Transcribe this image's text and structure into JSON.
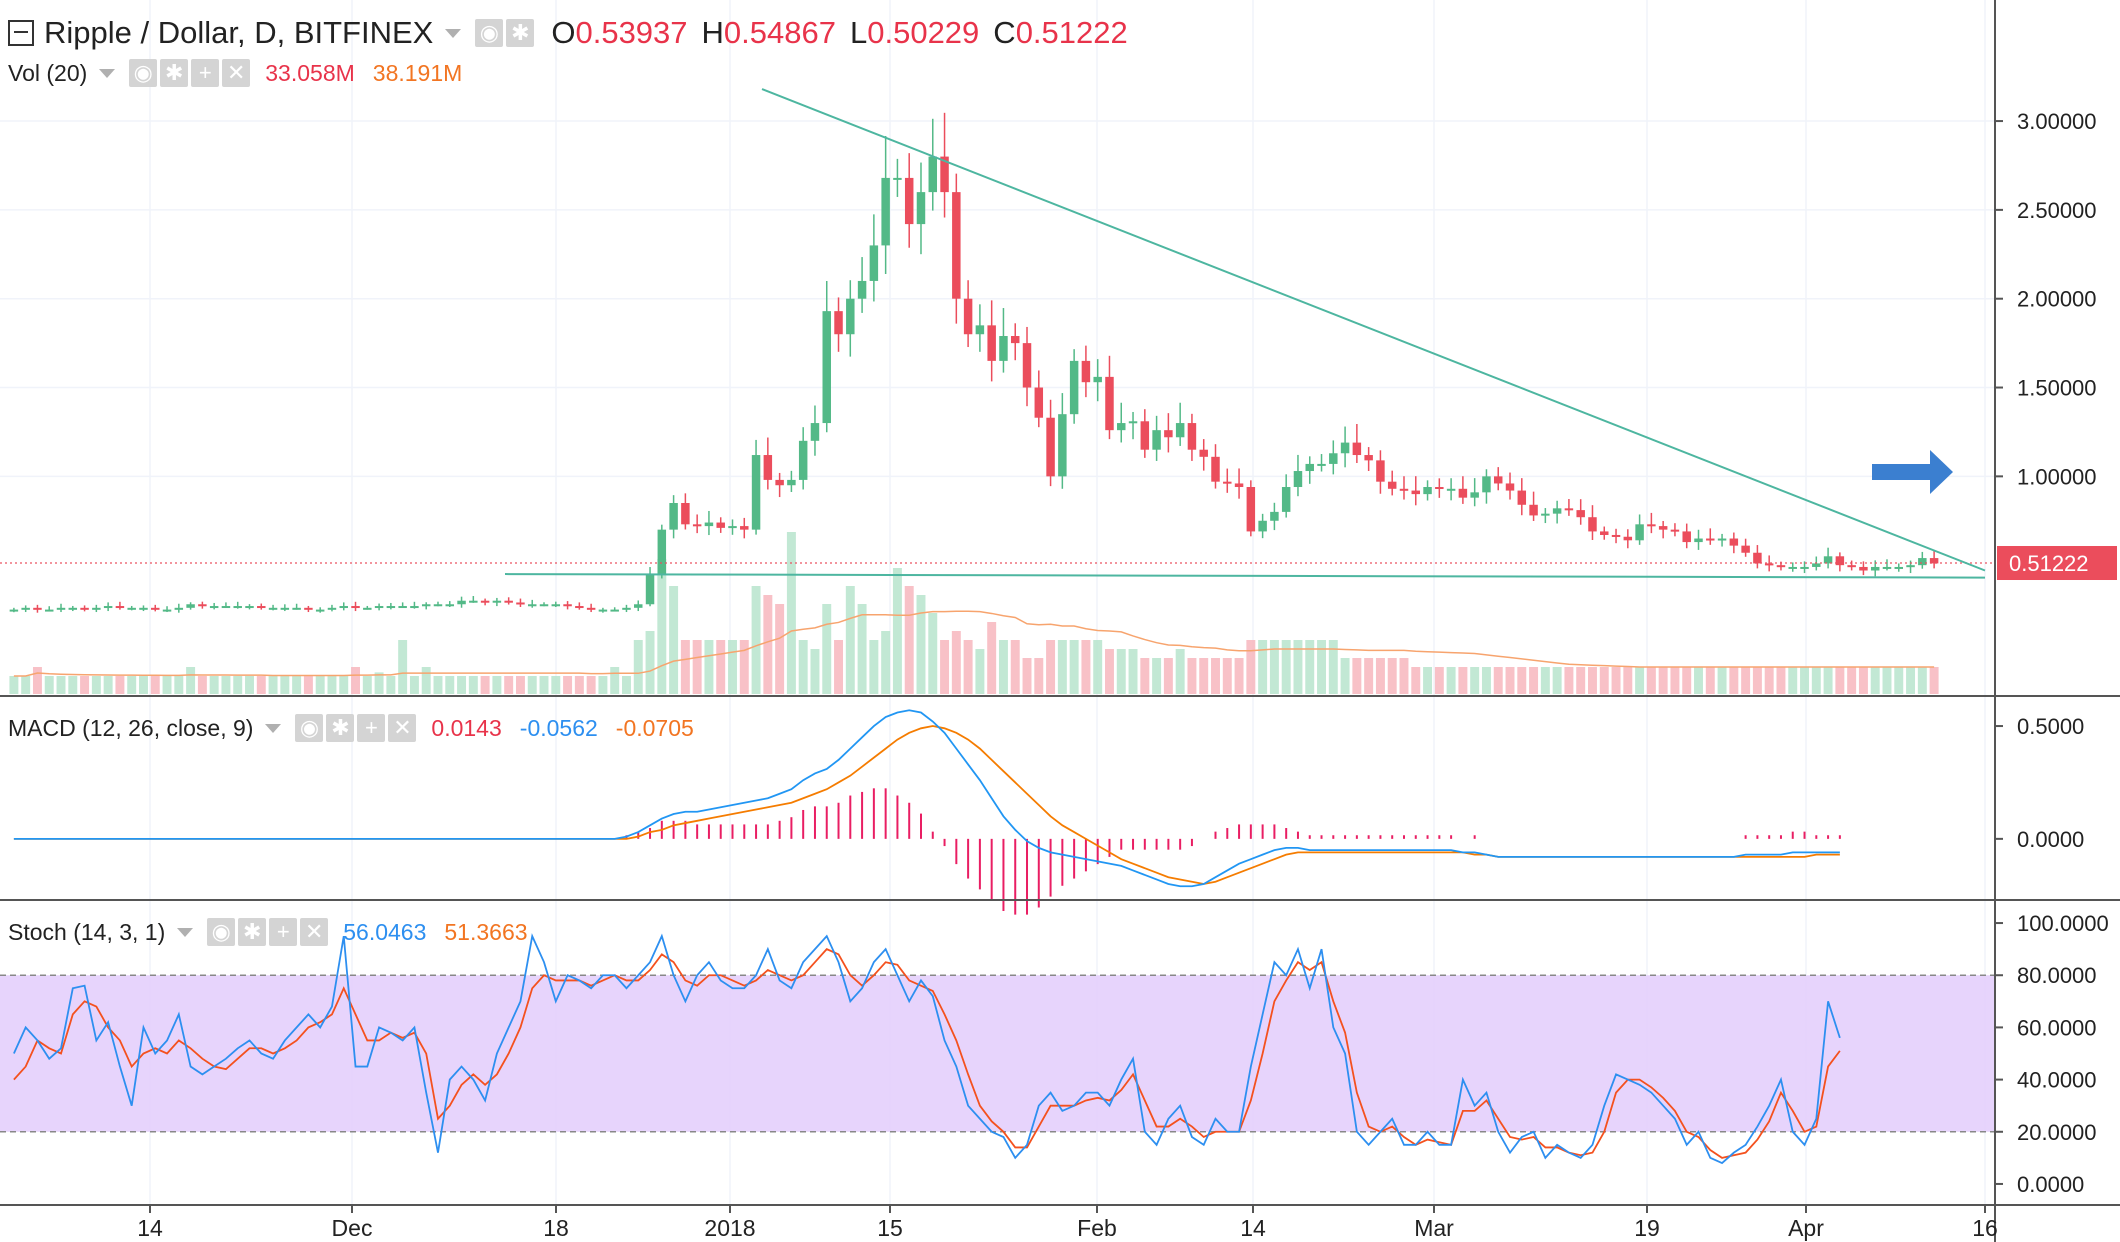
{
  "main": {
    "title": "Ripple / Dollar, D, BITFINEX",
    "ohlc": {
      "o_label": "O",
      "o": "0.53937",
      "h_label": "H",
      "h": "0.54867",
      "l_label": "L",
      "l": "0.50229",
      "c_label": "C",
      "c": "0.51222"
    }
  },
  "volume": {
    "label": "Vol (20)",
    "v1": "33.058M",
    "v2": "38.191M"
  },
  "macd": {
    "label": "MACD (12, 26, close, 9)",
    "hist": "0.0143",
    "macd": "-0.0562",
    "signal": "-0.0705"
  },
  "stoch": {
    "label": "Stoch (14, 3, 1)",
    "k": "56.0463",
    "d": "51.3663"
  },
  "colors": {
    "up": "#53b987",
    "down": "#eb4d5c",
    "trend": "#4db6a0",
    "macd": "#2196f3",
    "signal": "#f57c00",
    "stochk": "#2d8ff0",
    "stochd": "#f4511e",
    "band": "#e1cafe",
    "arrow": "#3b7fd0"
  },
  "chart_data": [
    {
      "type": "candlestick",
      "title": "Ripple / Dollar, D, BITFINEX",
      "x_ticks": [
        "14",
        "Dec",
        "18",
        "2018",
        "15",
        "Feb",
        "14",
        "Mar",
        "19",
        "Apr",
        "16"
      ],
      "y_ticks": [
        "3.00000",
        "2.50000",
        "2.00000",
        "1.50000",
        "1.00000"
      ],
      "ylim": [
        0,
        3.4
      ],
      "last_price": "0.51222",
      "close_series": [
        0.25,
        0.26,
        0.25,
        0.25,
        0.26,
        0.26,
        0.25,
        0.26,
        0.27,
        0.26,
        0.26,
        0.26,
        0.25,
        0.25,
        0.26,
        0.28,
        0.27,
        0.27,
        0.27,
        0.27,
        0.27,
        0.26,
        0.26,
        0.26,
        0.26,
        0.25,
        0.25,
        0.26,
        0.27,
        0.26,
        0.26,
        0.27,
        0.27,
        0.27,
        0.27,
        0.28,
        0.28,
        0.28,
        0.3,
        0.3,
        0.29,
        0.3,
        0.29,
        0.28,
        0.28,
        0.28,
        0.28,
        0.27,
        0.26,
        0.25,
        0.25,
        0.25,
        0.26,
        0.28,
        0.45,
        0.7,
        0.85,
        0.73,
        0.72,
        0.74,
        0.71,
        0.72,
        0.7,
        1.12,
        0.98,
        0.95,
        0.98,
        1.2,
        1.3,
        1.93,
        1.8,
        2.0,
        2.1,
        2.3,
        2.68,
        2.68,
        2.42,
        2.6,
        2.8,
        2.6,
        2.0,
        1.8,
        1.85,
        1.65,
        1.79,
        1.75,
        1.5,
        1.33,
        1.0,
        1.35,
        1.65,
        1.53,
        1.56,
        1.26,
        1.3,
        1.31,
        1.15,
        1.26,
        1.22,
        1.3,
        1.15,
        1.11,
        0.97,
        0.96,
        0.94,
        0.69,
        0.75,
        0.8,
        0.94,
        1.03,
        1.07,
        1.07,
        1.13,
        1.19,
        1.12,
        1.09,
        0.97,
        0.93,
        0.92,
        0.9,
        0.94,
        0.93,
        0.93,
        0.88,
        0.91,
        1.0,
        0.96,
        0.92,
        0.84,
        0.78,
        0.79,
        0.82,
        0.81,
        0.77,
        0.69,
        0.67,
        0.66,
        0.64,
        0.73,
        0.72,
        0.7,
        0.69,
        0.63,
        0.65,
        0.64,
        0.65,
        0.61,
        0.57,
        0.51,
        0.5,
        0.49,
        0.49,
        0.49,
        0.51,
        0.55,
        0.5,
        0.49,
        0.47,
        0.49,
        0.49,
        0.49,
        0.5,
        0.54,
        0.51
      ],
      "trendlines": [
        {
          "from": [
            "2018-01-04",
            3.18
          ],
          "to": [
            "2018-04-16",
            0.47
          ]
        },
        {
          "from": [
            "2017-12-12",
            0.45
          ],
          "to": [
            "2018-04-16",
            0.43
          ]
        }
      ]
    },
    {
      "type": "bar",
      "title": "Vol (20)",
      "values_relative": [
        0.1,
        0.1,
        0.15,
        0.1,
        0.1,
        0.1,
        0.1,
        0.1,
        0.1,
        0.1,
        0.1,
        0.1,
        0.1,
        0.1,
        0.1,
        0.15,
        0.1,
        0.1,
        0.1,
        0.1,
        0.1,
        0.1,
        0.1,
        0.1,
        0.1,
        0.1,
        0.1,
        0.1,
        0.1,
        0.15,
        0.1,
        0.12,
        0.1,
        0.3,
        0.1,
        0.15,
        0.1,
        0.1,
        0.1,
        0.1,
        0.1,
        0.1,
        0.1,
        0.1,
        0.1,
        0.1,
        0.1,
        0.1,
        0.1,
        0.1,
        0.1,
        0.15,
        0.1,
        0.3,
        0.35,
        0.75,
        0.6,
        0.3,
        0.3,
        0.3,
        0.3,
        0.3,
        0.3,
        0.6,
        0.55,
        0.5,
        0.9,
        0.3,
        0.25,
        0.5,
        0.3,
        0.6,
        0.5,
        0.3,
        0.35,
        0.7,
        0.6,
        0.55,
        0.45,
        0.3,
        0.35,
        0.3,
        0.25,
        0.4,
        0.3,
        0.3,
        0.2,
        0.2,
        0.3,
        0.3,
        0.3,
        0.3,
        0.3,
        0.25,
        0.25,
        0.25,
        0.2,
        0.2,
        0.2,
        0.25,
        0.2,
        0.2,
        0.2,
        0.2,
        0.2,
        0.3,
        0.3,
        0.3,
        0.3,
        0.3,
        0.3,
        0.3,
        0.3,
        0.2,
        0.2,
        0.2,
        0.2,
        0.2,
        0.2,
        0.15,
        0.15,
        0.15,
        0.15,
        0.15,
        0.15,
        0.15,
        0.15,
        0.15,
        0.15,
        0.15,
        0.15,
        0.15,
        0.15,
        0.15,
        0.15,
        0.15,
        0.15,
        0.15,
        0.15,
        0.15,
        0.15,
        0.15,
        0.15,
        0.15,
        0.15,
        0.15,
        0.15,
        0.15,
        0.15,
        0.15,
        0.15,
        0.15,
        0.15,
        0.15,
        0.15,
        0.15,
        0.15,
        0.15,
        0.15,
        0.15,
        0.15,
        0.15,
        0.15,
        0.15
      ],
      "v1": "33.058M",
      "v2": "38.191M"
    },
    {
      "type": "line",
      "title": "MACD (12, 26, close, 9)",
      "y_ticks": [
        "0.5000",
        "0.0000"
      ],
      "ylim": [
        -0.24,
        0.58
      ],
      "series": [
        {
          "name": "MACD",
          "values": [
            0,
            0,
            0,
            0,
            0,
            0,
            0,
            0,
            0,
            0,
            0,
            0,
            0,
            0,
            0,
            0,
            0,
            0,
            0,
            0,
            0,
            0,
            0,
            0,
            0,
            0,
            0,
            0,
            0,
            0,
            0,
            0,
            0,
            0,
            0,
            0,
            0,
            0,
            0,
            0,
            0,
            0,
            0,
            0,
            0,
            0,
            0,
            0,
            0,
            0,
            0,
            0,
            0.01,
            0.03,
            0.06,
            0.09,
            0.11,
            0.12,
            0.12,
            0.13,
            0.14,
            0.15,
            0.16,
            0.17,
            0.18,
            0.2,
            0.22,
            0.26,
            0.29,
            0.31,
            0.35,
            0.4,
            0.45,
            0.5,
            0.54,
            0.56,
            0.57,
            0.56,
            0.52,
            0.47,
            0.4,
            0.33,
            0.26,
            0.18,
            0.1,
            0.04,
            -0.01,
            -0.04,
            -0.06,
            -0.07,
            -0.08,
            -0.09,
            -0.1,
            -0.11,
            -0.12,
            -0.14,
            -0.16,
            -0.18,
            -0.2,
            -0.21,
            -0.21,
            -0.2,
            -0.17,
            -0.14,
            -0.11,
            -0.09,
            -0.07,
            -0.05,
            -0.04,
            -0.04,
            -0.05,
            -0.05,
            -0.05,
            -0.05,
            -0.05,
            -0.05,
            -0.05,
            -0.05,
            -0.05,
            -0.05,
            -0.05,
            -0.05,
            -0.05,
            -0.06,
            -0.06,
            -0.07,
            -0.08,
            -0.08,
            -0.08,
            -0.08,
            -0.08,
            -0.08,
            -0.08,
            -0.08,
            -0.08,
            -0.08,
            -0.08,
            -0.08,
            -0.08,
            -0.08,
            -0.08,
            -0.08,
            -0.08,
            -0.08,
            -0.08,
            -0.08,
            -0.08,
            -0.07,
            -0.07,
            -0.07,
            -0.07,
            -0.06,
            -0.06,
            -0.06,
            -0.06,
            -0.06
          ]
        },
        {
          "name": "Signal",
          "values": [
            0,
            0,
            0,
            0,
            0,
            0,
            0,
            0,
            0,
            0,
            0,
            0,
            0,
            0,
            0,
            0,
            0,
            0,
            0,
            0,
            0,
            0,
            0,
            0,
            0,
            0,
            0,
            0,
            0,
            0,
            0,
            0,
            0,
            0,
            0,
            0,
            0,
            0,
            0,
            0,
            0,
            0,
            0,
            0,
            0,
            0,
            0,
            0,
            0,
            0,
            0,
            0,
            0,
            0.01,
            0.03,
            0.04,
            0.06,
            0.07,
            0.08,
            0.09,
            0.1,
            0.11,
            0.12,
            0.13,
            0.14,
            0.15,
            0.16,
            0.18,
            0.2,
            0.22,
            0.25,
            0.28,
            0.32,
            0.36,
            0.4,
            0.44,
            0.47,
            0.49,
            0.5,
            0.49,
            0.47,
            0.44,
            0.4,
            0.35,
            0.3,
            0.25,
            0.2,
            0.15,
            0.1,
            0.06,
            0.03,
            0,
            -0.03,
            -0.06,
            -0.09,
            -0.11,
            -0.13,
            -0.15,
            -0.17,
            -0.18,
            -0.19,
            -0.2,
            -0.19,
            -0.17,
            -0.15,
            -0.13,
            -0.11,
            -0.09,
            -0.07,
            -0.06,
            -0.06,
            -0.06,
            -0.06,
            -0.06,
            -0.06,
            -0.06,
            -0.06,
            -0.06,
            -0.06,
            -0.06,
            -0.06,
            -0.06,
            -0.06,
            -0.06,
            -0.07,
            -0.07,
            -0.08,
            -0.08,
            -0.08,
            -0.08,
            -0.08,
            -0.08,
            -0.08,
            -0.08,
            -0.08,
            -0.08,
            -0.08,
            -0.08,
            -0.08,
            -0.08,
            -0.08,
            -0.08,
            -0.08,
            -0.08,
            -0.08,
            -0.08,
            -0.08,
            -0.08,
            -0.08,
            -0.08,
            -0.08,
            -0.08,
            -0.08,
            -0.07,
            -0.07,
            -0.07
          ]
        }
      ]
    },
    {
      "type": "line",
      "title": "Stoch (14, 3, 1)",
      "y_ticks": [
        "100.0000",
        "80.0000",
        "60.0000",
        "40.0000",
        "20.0000",
        "0.0000"
      ],
      "ylim": [
        -5,
        105
      ],
      "band": [
        20,
        80
      ],
      "series": [
        {
          "name": "%K",
          "values": [
            50,
            60,
            55,
            48,
            52,
            75,
            76,
            55,
            62,
            45,
            30,
            60,
            50,
            55,
            65,
            45,
            42,
            45,
            48,
            52,
            55,
            50,
            48,
            55,
            60,
            65,
            60,
            68,
            95,
            45,
            45,
            60,
            58,
            55,
            60,
            35,
            12,
            40,
            45,
            40,
            32,
            50,
            60,
            70,
            95,
            85,
            70,
            80,
            78,
            75,
            80,
            80,
            75,
            80,
            85,
            95,
            80,
            70,
            80,
            85,
            78,
            75,
            75,
            80,
            90,
            78,
            75,
            85,
            90,
            95,
            85,
            70,
            75,
            85,
            90,
            80,
            70,
            78,
            72,
            55,
            45,
            30,
            25,
            20,
            18,
            10,
            15,
            30,
            35,
            28,
            30,
            35,
            35,
            30,
            40,
            48,
            20,
            15,
            25,
            30,
            18,
            15,
            25,
            20,
            20,
            45,
            65,
            85,
            80,
            90,
            75,
            90,
            60,
            50,
            20,
            15,
            20,
            25,
            15,
            15,
            20,
            15,
            15,
            40,
            30,
            35,
            20,
            12,
            18,
            20,
            10,
            15,
            12,
            10,
            15,
            30,
            42,
            40,
            38,
            35,
            30,
            25,
            15,
            20,
            10,
            8,
            12,
            15,
            22,
            30,
            40,
            20,
            15,
            25,
            70,
            56
          ]
        },
        {
          "name": "%D",
          "values": [
            40,
            45,
            55,
            52,
            50,
            65,
            70,
            68,
            60,
            55,
            45,
            50,
            52,
            50,
            55,
            52,
            48,
            45,
            44,
            48,
            52,
            52,
            50,
            52,
            55,
            60,
            62,
            65,
            75,
            65,
            55,
            55,
            58,
            56,
            58,
            50,
            25,
            30,
            38,
            42,
            38,
            42,
            50,
            60,
            75,
            80,
            78,
            78,
            78,
            76,
            78,
            80,
            78,
            78,
            82,
            88,
            85,
            78,
            76,
            80,
            80,
            78,
            76,
            78,
            82,
            80,
            78,
            80,
            85,
            90,
            88,
            80,
            76,
            80,
            85,
            84,
            78,
            76,
            74,
            65,
            55,
            42,
            30,
            24,
            20,
            14,
            14,
            22,
            30,
            30,
            30,
            32,
            33,
            32,
            36,
            42,
            32,
            22,
            22,
            25,
            22,
            18,
            20,
            20,
            20,
            32,
            50,
            70,
            78,
            85,
            82,
            85,
            70,
            58,
            35,
            22,
            20,
            22,
            18,
            15,
            17,
            16,
            15,
            28,
            28,
            32,
            25,
            18,
            17,
            18,
            14,
            14,
            12,
            11,
            12,
            20,
            35,
            40,
            40,
            37,
            33,
            28,
            20,
            18,
            13,
            10,
            11,
            12,
            17,
            24,
            35,
            28,
            20,
            22,
            45,
            51
          ]
        }
      ]
    }
  ]
}
